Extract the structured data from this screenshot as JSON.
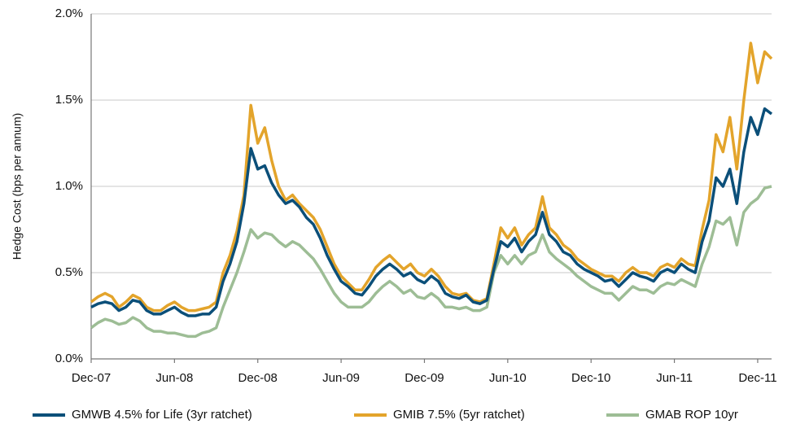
{
  "chart_data": {
    "type": "line",
    "y_label": "Hedge Cost (bps per annum)",
    "categories": [
      "Dec-07",
      null,
      null,
      null,
      null,
      null,
      null,
      null,
      null,
      null,
      null,
      null,
      "Jun-08",
      null,
      null,
      null,
      null,
      null,
      null,
      null,
      null,
      null,
      null,
      null,
      "Dec-08",
      null,
      null,
      null,
      null,
      null,
      null,
      null,
      null,
      null,
      null,
      null,
      "Jun-09",
      null,
      null,
      null,
      null,
      null,
      null,
      null,
      null,
      null,
      null,
      null,
      "Dec-09",
      null,
      null,
      null,
      null,
      null,
      null,
      null,
      null,
      null,
      null,
      null,
      "Jun-10",
      null,
      null,
      null,
      null,
      null,
      null,
      null,
      null,
      null,
      null,
      null,
      "Dec-10",
      null,
      null,
      null,
      null,
      null,
      null,
      null,
      null,
      null,
      null,
      null,
      "Jun-11",
      null,
      null,
      null,
      null,
      null,
      null,
      null,
      null,
      null,
      null,
      null,
      "Dec-11",
      null,
      null
    ],
    "series": [
      {
        "name": "GMWB 4.5% for Life (3yr ratchet)",
        "color": "#0b4f79",
        "values": [
          0.3,
          0.32,
          0.33,
          0.32,
          0.28,
          0.3,
          0.34,
          0.33,
          0.28,
          0.26,
          0.26,
          0.28,
          0.3,
          0.27,
          0.25,
          0.25,
          0.26,
          0.26,
          0.3,
          0.45,
          0.55,
          0.68,
          0.9,
          1.22,
          1.1,
          1.12,
          1.02,
          0.95,
          0.9,
          0.92,
          0.88,
          0.82,
          0.78,
          0.7,
          0.6,
          0.52,
          0.45,
          0.42,
          0.38,
          0.37,
          0.42,
          0.48,
          0.52,
          0.55,
          0.52,
          0.48,
          0.5,
          0.46,
          0.44,
          0.48,
          0.45,
          0.38,
          0.36,
          0.35,
          0.37,
          0.33,
          0.32,
          0.34,
          0.52,
          0.68,
          0.65,
          0.7,
          0.62,
          0.68,
          0.72,
          0.85,
          0.72,
          0.68,
          0.62,
          0.6,
          0.55,
          0.52,
          0.5,
          0.48,
          0.45,
          0.46,
          0.42,
          0.46,
          0.5,
          0.48,
          0.47,
          0.45,
          0.5,
          0.52,
          0.5,
          0.55,
          0.52,
          0.5,
          0.68,
          0.8,
          1.05,
          1.0,
          1.1,
          0.9,
          1.2,
          1.4,
          1.3,
          1.45,
          1.42
        ]
      },
      {
        "name": "GMIB 7.5% (5yr ratchet)",
        "color": "#e3a42b",
        "values": [
          0.33,
          0.36,
          0.38,
          0.36,
          0.3,
          0.33,
          0.37,
          0.35,
          0.3,
          0.28,
          0.28,
          0.31,
          0.33,
          0.3,
          0.28,
          0.28,
          0.29,
          0.3,
          0.33,
          0.5,
          0.6,
          0.74,
          0.95,
          1.47,
          1.25,
          1.34,
          1.15,
          1.0,
          0.92,
          0.95,
          0.9,
          0.86,
          0.82,
          0.75,
          0.65,
          0.55,
          0.48,
          0.44,
          0.4,
          0.4,
          0.46,
          0.53,
          0.57,
          0.6,
          0.56,
          0.52,
          0.55,
          0.5,
          0.48,
          0.52,
          0.48,
          0.42,
          0.38,
          0.37,
          0.38,
          0.34,
          0.33,
          0.35,
          0.55,
          0.76,
          0.7,
          0.76,
          0.66,
          0.72,
          0.76,
          0.94,
          0.76,
          0.72,
          0.66,
          0.63,
          0.58,
          0.55,
          0.52,
          0.5,
          0.48,
          0.48,
          0.45,
          0.5,
          0.53,
          0.5,
          0.5,
          0.48,
          0.53,
          0.55,
          0.53,
          0.58,
          0.55,
          0.54,
          0.75,
          0.92,
          1.3,
          1.2,
          1.4,
          1.1,
          1.5,
          1.83,
          1.6,
          1.78,
          1.74
        ]
      },
      {
        "name": "GMAB ROP 10yr",
        "color": "#9dbd95",
        "values": [
          0.18,
          0.21,
          0.23,
          0.22,
          0.2,
          0.21,
          0.24,
          0.22,
          0.18,
          0.16,
          0.16,
          0.15,
          0.15,
          0.14,
          0.13,
          0.13,
          0.15,
          0.16,
          0.18,
          0.3,
          0.4,
          0.5,
          0.62,
          0.75,
          0.7,
          0.73,
          0.72,
          0.68,
          0.65,
          0.68,
          0.66,
          0.62,
          0.58,
          0.52,
          0.45,
          0.38,
          0.33,
          0.3,
          0.3,
          0.3,
          0.33,
          0.38,
          0.42,
          0.45,
          0.42,
          0.38,
          0.4,
          0.36,
          0.35,
          0.38,
          0.35,
          0.3,
          0.3,
          0.29,
          0.3,
          0.28,
          0.28,
          0.3,
          0.5,
          0.6,
          0.55,
          0.6,
          0.55,
          0.6,
          0.62,
          0.72,
          0.62,
          0.58,
          0.55,
          0.52,
          0.48,
          0.45,
          0.42,
          0.4,
          0.38,
          0.38,
          0.34,
          0.38,
          0.42,
          0.4,
          0.4,
          0.38,
          0.42,
          0.44,
          0.43,
          0.46,
          0.44,
          0.42,
          0.55,
          0.65,
          0.8,
          0.78,
          0.82,
          0.66,
          0.85,
          0.9,
          0.93,
          0.99,
          1.0
        ]
      }
    ],
    "ylim": [
      0,
      2
    ],
    "yticks": [
      {
        "value": 0,
        "label": "0.0%"
      },
      {
        "value": 0.5,
        "label": "0.5%"
      },
      {
        "value": 1,
        "label": "1.0%"
      },
      {
        "value": 1.5,
        "label": "1.5%"
      },
      {
        "value": 2,
        "label": "2.0%"
      }
    ],
    "grid": true,
    "legend": "bottom"
  }
}
